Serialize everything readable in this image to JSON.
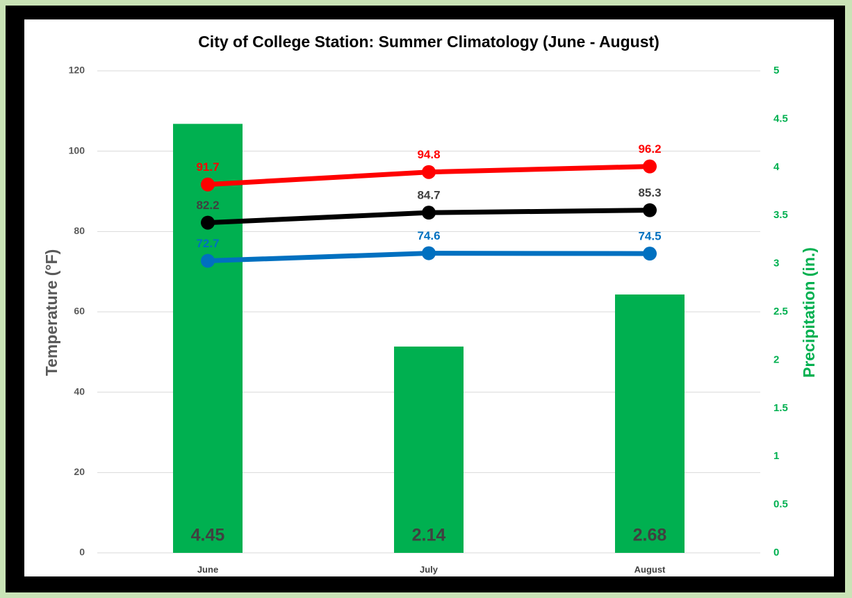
{
  "chart_data": {
    "type": "combo",
    "title": "City of College Station: Summer Climatology (June - August)",
    "ylabel": "Temperature (°F)",
    "y2label": "Precipitation (in.)",
    "categories": [
      "June",
      "July",
      "August"
    ],
    "ylim": [
      0,
      120
    ],
    "yticks": [
      0,
      20,
      40,
      60,
      80,
      100,
      120
    ],
    "y2lim": [
      0,
      5
    ],
    "y2ticks": [
      0,
      0.5,
      1,
      1.5,
      2,
      2.5,
      3,
      3.5,
      4,
      4.5,
      5
    ],
    "grid": true,
    "series": [
      {
        "type": "bar",
        "axis": "y2",
        "color": "#00b050",
        "label_color": "#404040",
        "values": [
          4.45,
          2.14,
          2.68
        ]
      },
      {
        "type": "line",
        "color": "#0070c0",
        "values": [
          72.7,
          74.6,
          74.5
        ]
      },
      {
        "type": "line",
        "color": "#000000",
        "label_color": "#404040",
        "values": [
          82.2,
          84.7,
          85.3
        ]
      },
      {
        "type": "line",
        "color": "#ff0000",
        "values": [
          91.7,
          94.8,
          96.2
        ]
      }
    ]
  }
}
